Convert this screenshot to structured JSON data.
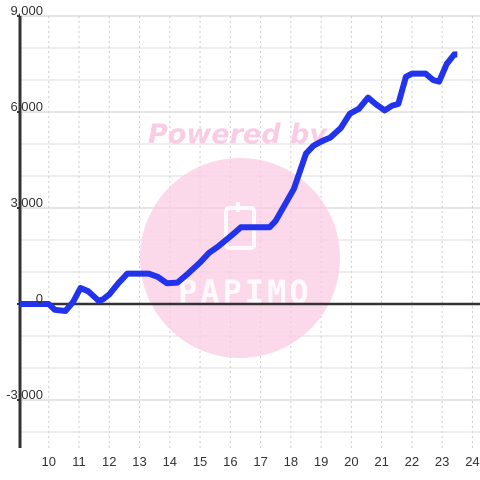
{
  "chart_data": {
    "type": "line",
    "title": "",
    "xlabel": "",
    "ylabel": "",
    "xlim": [
      9.05,
      24.25
    ],
    "ylim": [
      -4500,
      9000
    ],
    "x_ticks": [
      10,
      11,
      12,
      13,
      14,
      15,
      16,
      17,
      18,
      19,
      20,
      21,
      22,
      23,
      24
    ],
    "y_ticks": [
      9000,
      6000,
      3000,
      0,
      -3000
    ],
    "y_tick_labels": [
      "9,000",
      "6,000",
      "3,000",
      "0",
      "-3,000"
    ],
    "grid": true,
    "legend": "none",
    "colors": {
      "line": "#2233ee",
      "zero_line": "#333333",
      "grid_major": "#cccccc",
      "grid_minor": "#dddddd",
      "watermark": "#f9cce3"
    },
    "series": [
      {
        "x": [
          9.05,
          9.5,
          10.0,
          10.2,
          10.55,
          10.8,
          11.05,
          11.3,
          11.65,
          11.8,
          12.0,
          12.3,
          12.6,
          12.95,
          13.3,
          13.6,
          13.9,
          14.25,
          14.6,
          15.0,
          15.3,
          15.6,
          16.05,
          16.35,
          16.75,
          17.05,
          17.3,
          17.5,
          17.8,
          18.1,
          18.5,
          18.75,
          19.05,
          19.3,
          19.65,
          19.95,
          20.25,
          20.55,
          20.8,
          21.1,
          21.35,
          21.55,
          21.8,
          22.0,
          22.3,
          22.45,
          22.7,
          22.9,
          23.15,
          23.4,
          23.5
        ],
        "values": [
          0,
          0,
          0,
          -180,
          -220,
          60,
          500,
          400,
          100,
          150,
          300,
          650,
          950,
          950,
          950,
          850,
          650,
          670,
          950,
          1300,
          1600,
          1800,
          2150,
          2400,
          2400,
          2400,
          2400,
          2600,
          3100,
          3600,
          4700,
          4950,
          5100,
          5200,
          5500,
          5950,
          6100,
          6450,
          6250,
          6050,
          6200,
          6250,
          7100,
          7200,
          7200,
          7200,
          7000,
          6950,
          7500,
          7800,
          7800
        ]
      }
    ]
  },
  "watermark": {
    "text": "Powered by",
    "brand": "PAPIMO"
  }
}
